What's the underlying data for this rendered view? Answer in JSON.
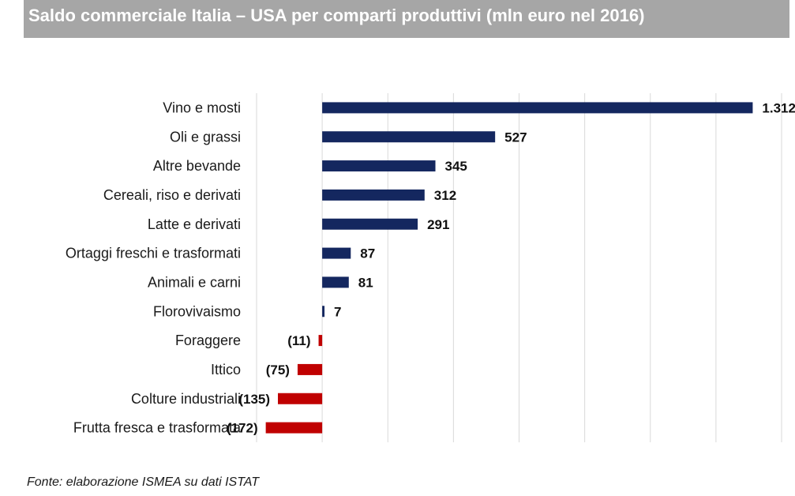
{
  "title": "Saldo commerciale Italia – USA per comparti produttivi (mln euro nel 2016)",
  "source": "Fonte: elaborazione ISMEA su dati ISTAT",
  "colors": {
    "positive": "#14275f",
    "negative": "#c00000",
    "grid": "#d9d9d9",
    "header": "#a6a6a6"
  },
  "chart_data": {
    "type": "bar",
    "orientation": "horizontal",
    "categories": [
      "Vino e mosti",
      "Oli e grassi",
      "Altre bevande",
      "Cereali, riso e derivati",
      "Latte e derivati",
      "Ortaggi freschi e trasformati",
      "Animali e carni",
      "Florovivaismo",
      "Foraggere",
      "Ittico",
      "Colture industriali",
      "Frutta fresca e trasformata"
    ],
    "values": [
      1312,
      527,
      345,
      312,
      291,
      87,
      81,
      7,
      -11,
      -75,
      -135,
      -172
    ],
    "labels": [
      "1.312",
      "527",
      "345",
      "312",
      "291",
      "87",
      "81",
      "7",
      "(11)",
      "(75)",
      "(135)",
      "(172)"
    ],
    "title": "Saldo commerciale Italia – USA per comparti produttivi (mln euro nel 2016)",
    "xlabel": "",
    "ylabel": "",
    "xlim": [
      -200,
      1400
    ],
    "grid": "vertical",
    "legend": "none"
  }
}
